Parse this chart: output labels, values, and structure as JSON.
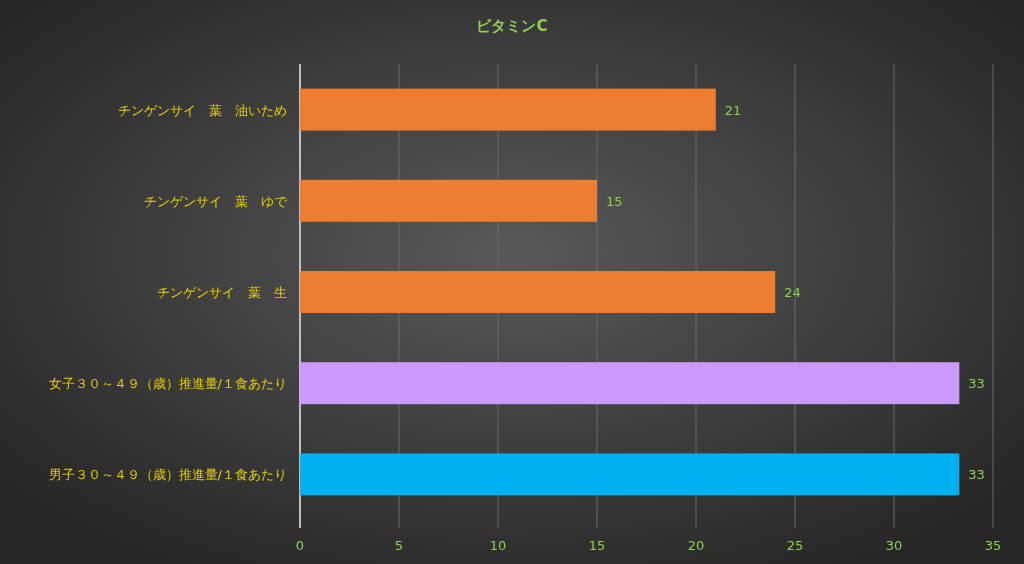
{
  "chart_data": {
    "type": "bar",
    "orientation": "horizontal",
    "title": "ビタミンC",
    "categories": [
      "チンゲンサイ　葉　油いため",
      "チンゲンサイ　葉　ゆで",
      "チンゲンサイ　葉　生",
      "女子３０～４９（歳）推進量/１食あたり",
      "男子３０～４９（歳）推進量/１食あたり"
    ],
    "values": [
      21,
      15,
      24,
      33.3,
      33.3
    ],
    "value_labels": [
      "21",
      "15",
      "24",
      "33",
      "33"
    ],
    "colors": [
      "#ed7d31",
      "#ed7d31",
      "#ed7d31",
      "#cc99ff",
      "#00b0f0"
    ],
    "xlim": [
      0,
      35
    ],
    "xticks": [
      0,
      5,
      10,
      15,
      20,
      25,
      30,
      35
    ],
    "grid": "x"
  }
}
